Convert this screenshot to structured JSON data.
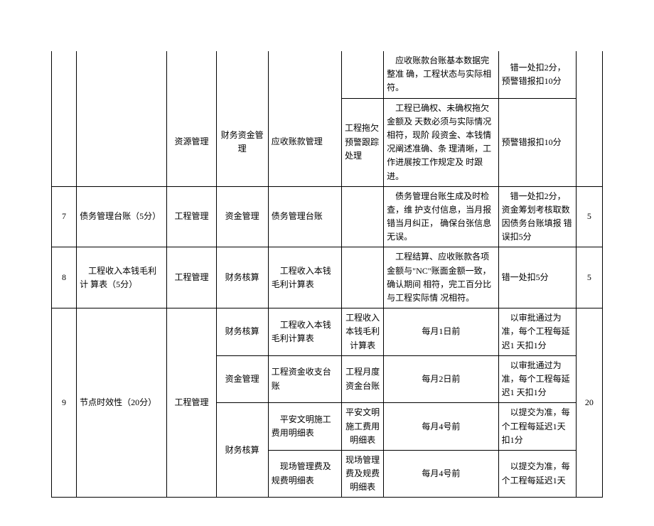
{
  "rows": {
    "r1": {
      "desc": "应收账款台账基本数据完整准 确，工程状态与实际相符。",
      "ded": "错一处扣2分，预警错报扣10分"
    },
    "r2": {
      "m1": "资源管理",
      "m2": "财务资金管理",
      "m3": "应收账款管理",
      "m4": "工程拖欠 预警跟踪 处理",
      "desc": "工程已确权、未确权拖欠金额及 天数必须与实际情况相符，现阶 段资金、本钱情况阐述准确、条 理清晰，工作进展按工作规定及 时跟进。",
      "ded": "预警错报扣10分"
    },
    "r7": {
      "idx": "7",
      "item": "债务管理台账（5分）",
      "m1": "工程管理",
      "m2": "资金管理",
      "m3": "债务管理台账",
      "desc": "债务管理台账生成及时检查，维 护支付信息，当月报错当月纠正， 确保台张信息无误。",
      "ded": "错一处扣2分，资金筹划考核取数 因债务台账填报 错误扣5分",
      "score": "5"
    },
    "r8": {
      "idx": "8",
      "item": "工程收入本钱毛利计 算表（5分）",
      "m1": "工程管理",
      "m2": "财务核算",
      "m3": "工程收入本钱毛利计算表",
      "desc": "工程结算、应收账款各项金额与\"NC\"账面金额一致，确认期间 相符，完工百分比与工程实际情 况相符。",
      "ded": "错一处扣5分",
      "score": "5"
    },
    "r9": {
      "idx": "9",
      "item": "节点时效性（20分）",
      "m1": "工程管理",
      "score": "20",
      "sub": [
        {
          "m2": "财务核算",
          "m3": "工程收入本钱毛利计算表",
          "m4b": "工程收入本钱毛利 计算表",
          "desc": "每月1日前",
          "ded": "以审批通过为准，每个工程每延迟1 天扣1分"
        },
        {
          "m2": "资金管理",
          "m3": "工程资金收支台账",
          "m4b": "工程月度资金台账",
          "desc": "每月2日前",
          "ded": "以审批通过为准，每个工程每延迟1 天扣1分"
        },
        {
          "m2": "财务核算",
          "m3": "平安文明施工费用明细表",
          "m4b": "平安文明施工费用 明细表",
          "desc": "每月4号前",
          "ded": "以提交为准，每个工程每延迟1天 扣1分"
        },
        {
          "m3": "现场管理费及规费明细表",
          "m4b": "现场管理费及规费 明细表",
          "desc": "每月4号前",
          "ded": "以提交为准，每个工程每延迟1天"
        }
      ]
    }
  }
}
